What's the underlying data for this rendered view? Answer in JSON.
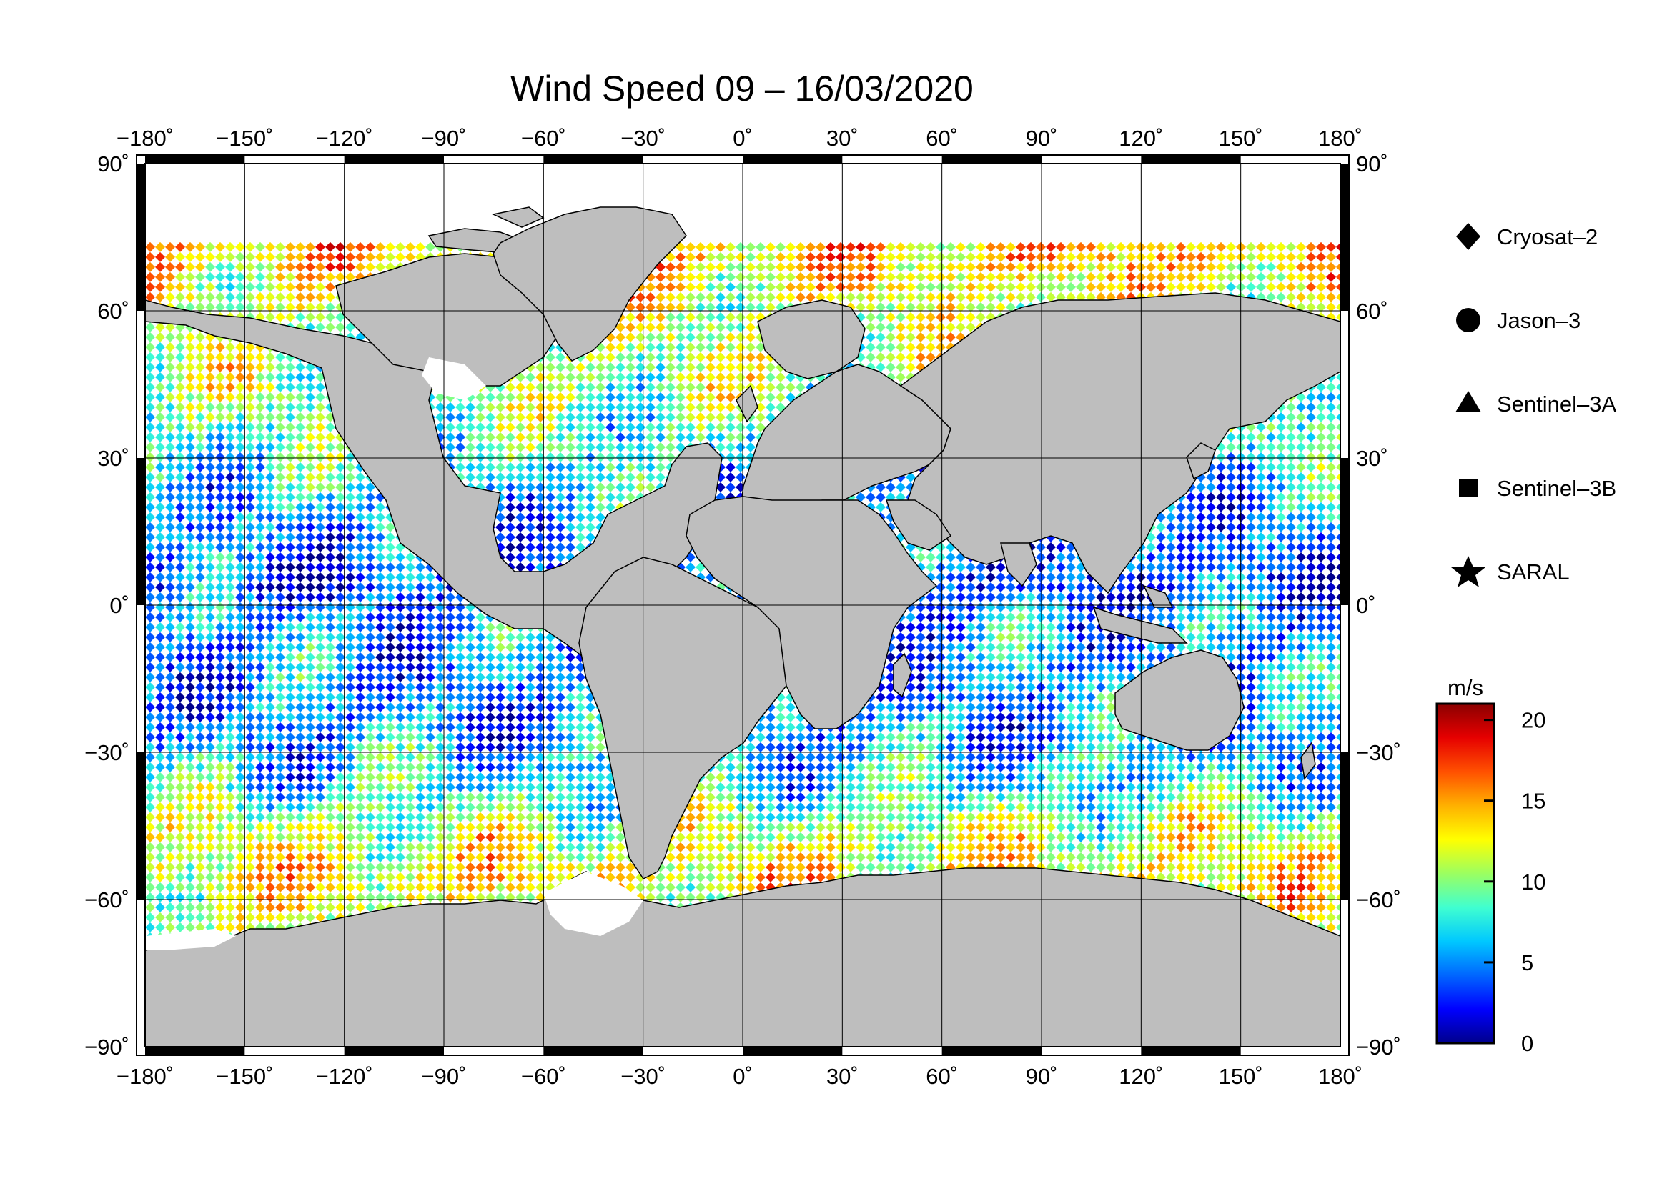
{
  "title": "Wind Speed 09 – 16/03/2020",
  "degree_mark": "˚",
  "lon_ticks": [
    -180,
    -150,
    -120,
    -90,
    -60,
    -30,
    0,
    30,
    60,
    90,
    120,
    150,
    180
  ],
  "lat_ticks": [
    90,
    60,
    30,
    0,
    -30,
    -60,
    -90
  ],
  "map_extent": {
    "lon": [
      -180,
      180
    ],
    "lat": [
      -90,
      90
    ]
  },
  "colors": {
    "land": "#bebebe",
    "ice": "#ffffff",
    "coast": "#000000",
    "grid": "#000000"
  },
  "legend": {
    "items": [
      {
        "name": "Cryosat–2",
        "marker": "diamond-icon"
      },
      {
        "name": "Jason–3",
        "marker": "circle-icon"
      },
      {
        "name": "Sentinel–3A",
        "marker": "triangle-icon"
      },
      {
        "name": "Sentinel–3B",
        "marker": "square-icon"
      },
      {
        "name": "SARAL",
        "marker": "star-icon"
      }
    ]
  },
  "colorbar": {
    "unit": "m/s",
    "range": [
      0,
      21
    ],
    "ticks": [
      0,
      5,
      10,
      15,
      20
    ],
    "palette": [
      "#00008b",
      "#0000ff",
      "#0066ff",
      "#00c8ff",
      "#40ffd0",
      "#9cff60",
      "#ffff00",
      "#ffb000",
      "#ff5000",
      "#e60000",
      "#8b0000"
    ]
  },
  "wind_field": {
    "palette_stops": [
      0,
      2,
      4,
      6,
      8,
      10,
      12,
      14,
      16,
      18,
      21
    ],
    "zonal_mean_by_lat": [
      {
        "lat": 72,
        "speed": 14
      },
      {
        "lat": 60,
        "speed": 11
      },
      {
        "lat": 45,
        "speed": 10
      },
      {
        "lat": 30,
        "speed": 7
      },
      {
        "lat": 15,
        "speed": 5
      },
      {
        "lat": 5,
        "speed": 3
      },
      {
        "lat": 0,
        "speed": 5
      },
      {
        "lat": -10,
        "speed": 5
      },
      {
        "lat": -25,
        "speed": 5
      },
      {
        "lat": -35,
        "speed": 7
      },
      {
        "lat": -45,
        "speed": 11
      },
      {
        "lat": -55,
        "speed": 13
      },
      {
        "lat": -65,
        "speed": 11
      },
      {
        "lat": -72,
        "speed": 10
      }
    ]
  }
}
